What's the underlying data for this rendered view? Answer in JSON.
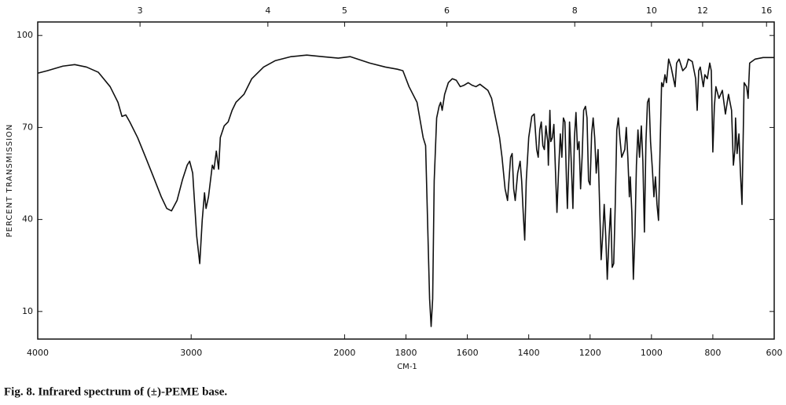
{
  "chart_data": {
    "type": "line",
    "ylabel": "PERCENT TRANSMISSION",
    "xlabel": "CM-1",
    "caption": "Fig. 8. Infrared spectrum of (±)-PEME base.",
    "color": "#111111",
    "xlim": [
      4000,
      600
    ],
    "x_scale_doubles_below": 2000,
    "xticks": [
      4000,
      3000,
      2000,
      1800,
      1600,
      1400,
      1200,
      1000,
      800,
      600
    ],
    "x2ticks": [
      3,
      4,
      5,
      6,
      8,
      10,
      12,
      16
    ],
    "ylim": [
      1,
      104.4
    ],
    "yticks": [
      10,
      40,
      70,
      100
    ],
    "grid": false,
    "x": [
      4000,
      3938,
      3836,
      3759,
      3682,
      3605,
      3528,
      3477,
      3451,
      3426,
      3400,
      3349,
      3297,
      3246,
      3195,
      3159,
      3128,
      3092,
      3056,
      3026,
      3010,
      2990,
      2964,
      2944,
      2928,
      2913,
      2903,
      2887,
      2862,
      2851,
      2836,
      2821,
      2810,
      2785,
      2759,
      2733,
      2708,
      2656,
      2605,
      2528,
      2451,
      2349,
      2246,
      2144,
      2041,
      1982,
      1918,
      1867,
      1828,
      1810,
      1790,
      1764,
      1744,
      1736,
      1731,
      1723,
      1718,
      1713,
      1708,
      1700,
      1692,
      1687,
      1682,
      1674,
      1662,
      1649,
      1636,
      1623,
      1610,
      1597,
      1585,
      1572,
      1559,
      1533,
      1521,
      1508,
      1495,
      1487,
      1477,
      1469,
      1459,
      1454,
      1449,
      1444,
      1436,
      1428,
      1423,
      1418,
      1413,
      1408,
      1400,
      1390,
      1382,
      1374,
      1369,
      1364,
      1359,
      1354,
      1349,
      1344,
      1338,
      1336,
      1331,
      1328,
      1323,
      1318,
      1313,
      1308,
      1303,
      1297,
      1292,
      1287,
      1282,
      1277,
      1274,
      1269,
      1267,
      1262,
      1256,
      1251,
      1246,
      1241,
      1236,
      1231,
      1226,
      1221,
      1215,
      1210,
      1205,
      1200,
      1195,
      1190,
      1185,
      1180,
      1174,
      1169,
      1164,
      1159,
      1154,
      1149,
      1144,
      1138,
      1133,
      1128,
      1123,
      1118,
      1113,
      1108,
      1103,
      1097,
      1087,
      1082,
      1077,
      1072,
      1069,
      1064,
      1059,
      1054,
      1049,
      1044,
      1039,
      1033,
      1028,
      1023,
      1018,
      1013,
      1008,
      1003,
      997,
      992,
      987,
      982,
      977,
      972,
      967,
      962,
      956,
      951,
      944,
      936,
      923,
      918,
      910,
      898,
      887,
      880,
      867,
      856,
      851,
      846,
      841,
      831,
      826,
      818,
      810,
      805,
      800,
      795,
      790,
      780,
      769,
      759,
      749,
      739,
      733,
      728,
      726,
      721,
      715,
      710,
      705,
      700,
      698,
      690,
      685,
      680,
      662,
      636,
      600
    ],
    "values": [
      87.7,
      88.5,
      90,
      90.5,
      89.7,
      88,
      83.3,
      78.2,
      73.6,
      74.1,
      71.8,
      66.7,
      60.3,
      53.9,
      47.4,
      43.6,
      42.8,
      46.2,
      53.1,
      57.7,
      59,
      55.1,
      34.6,
      25.6,
      39.7,
      48.7,
      43.6,
      47.4,
      57.7,
      56.4,
      62.3,
      56.4,
      66.7,
      70.5,
      71.8,
      75.6,
      78.2,
      80.8,
      85.9,
      89.7,
      91.8,
      93.1,
      93.6,
      93.1,
      92.6,
      93.1,
      91,
      89.7,
      89,
      88.5,
      83.3,
      78.2,
      66.7,
      64.1,
      44.9,
      14.1,
      5.1,
      14.1,
      52.6,
      73.1,
      76.9,
      78.2,
      75.6,
      80.8,
      84.6,
      85.9,
      85.4,
      83.3,
      83.8,
      84.6,
      83.8,
      83.3,
      84.1,
      82.1,
      79.5,
      73.1,
      66.7,
      60.3,
      50,
      46.2,
      60.3,
      61.5,
      50,
      46.2,
      55.1,
      59,
      52.6,
      42.3,
      33.3,
      52.6,
      66.7,
      73.6,
      74.4,
      62.8,
      60.3,
      69.2,
      71.8,
      64.1,
      62.8,
      70.5,
      65.4,
      57.7,
      75.6,
      65.4,
      66.7,
      71,
      56.4,
      42.3,
      55.1,
      67.9,
      60.3,
      73.1,
      71.8,
      52.6,
      43.6,
      60.3,
      71.8,
      60.3,
      43.6,
      66.7,
      74.9,
      62.8,
      65.4,
      50,
      60.3,
      75.6,
      76.9,
      73.1,
      52.6,
      51.3,
      67.9,
      73.1,
      66.7,
      55.1,
      62.8,
      44.9,
      26.9,
      34.6,
      44.9,
      34.6,
      20.5,
      34.6,
      43.6,
      24.4,
      25.6,
      44.9,
      69.2,
      73.1,
      66.7,
      60.3,
      62.8,
      70,
      60.3,
      47.4,
      53.9,
      42.3,
      20.5,
      34.6,
      57.7,
      69.2,
      60.3,
      70.5,
      59,
      35.9,
      65.4,
      78.2,
      79.5,
      65.4,
      56.4,
      47.4,
      53.9,
      44.9,
      39.7,
      62.8,
      84.6,
      83.3,
      87.2,
      84.6,
      92.3,
      89.7,
      83.3,
      91,
      92.3,
      88.5,
      89.7,
      92.3,
      91.5,
      85.9,
      75.6,
      88.5,
      89.7,
      83.3,
      87.2,
      85.9,
      91,
      88.5,
      62,
      76.9,
      83.3,
      79.5,
      82.1,
      74.4,
      80.8,
      75.6,
      57.7,
      62.8,
      73.1,
      61.5,
      67.9,
      55.1,
      44.9,
      73.1,
      84.6,
      83.3,
      79.5,
      91,
      92.3,
      92.8,
      92.8
    ]
  }
}
